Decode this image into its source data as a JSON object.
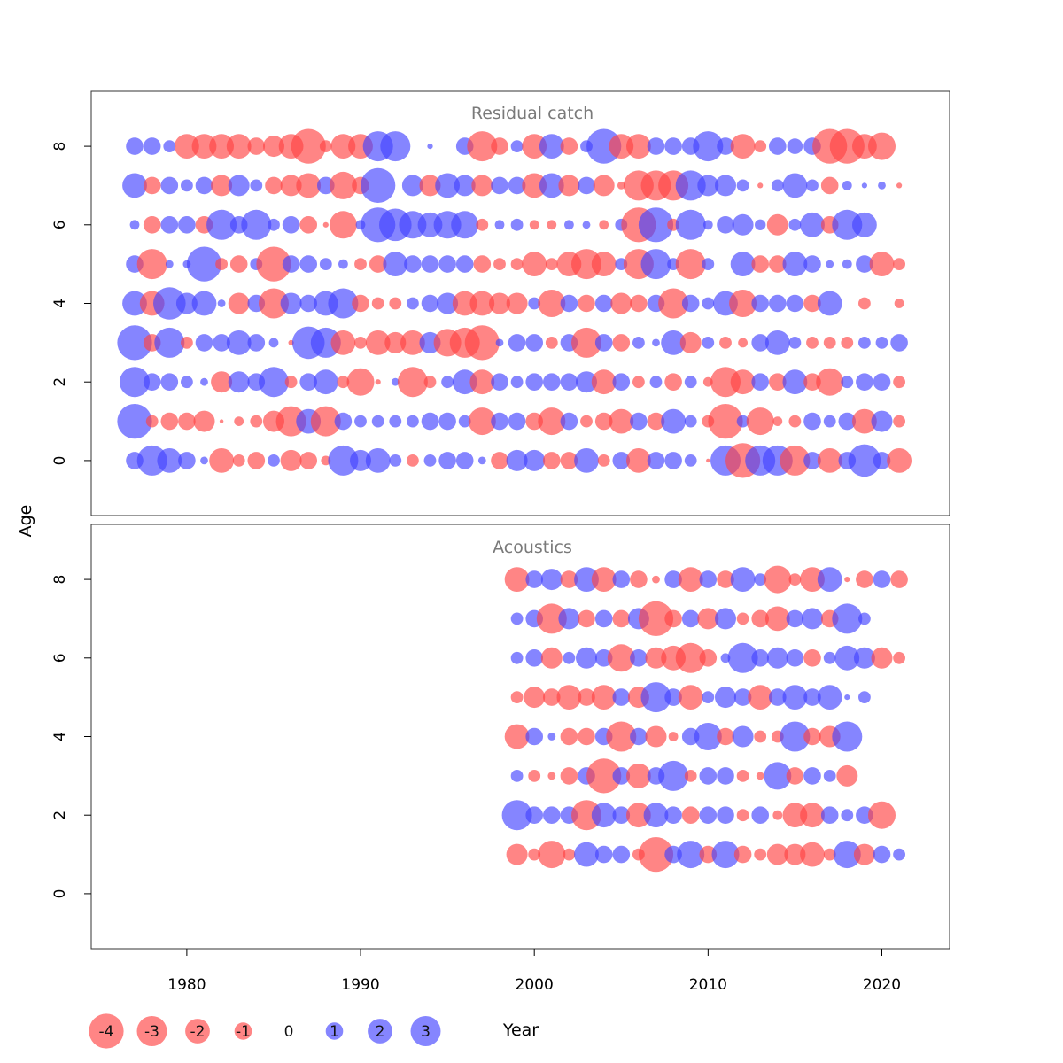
{
  "chart_data": {
    "type": "scatter",
    "subtype": "bubble",
    "xlabel": "Year",
    "ylabel": "Age",
    "xlim": [
      1974.5,
      2023.9
    ],
    "ylim": [
      -1.4,
      9.4
    ],
    "x_ticks": [
      1980,
      1990,
      2000,
      2010,
      2020
    ],
    "y_ticks": [
      0,
      2,
      4,
      6,
      8
    ],
    "colors": {
      "positive": "#4444ff",
      "negative": "#ff4444",
      "opacity": 0.65
    },
    "legend": {
      "position": "bottom-left",
      "values": [
        -4,
        -3,
        -2,
        -1,
        0,
        1,
        2,
        3
      ],
      "labels": [
        "-4",
        "-3",
        "-2",
        "-1",
        "0",
        "1",
        "2",
        "3"
      ]
    },
    "panels": [
      {
        "title": "Residual catch",
        "years_start": 1977,
        "rows": {
          "8": [
            1,
            1,
            0.5,
            -2,
            -2,
            -2,
            -2,
            -1,
            -1.5,
            -2,
            -4,
            -0.5,
            -2,
            -2,
            3,
            3,
            0,
            0.1,
            0,
            1,
            -3,
            -1,
            0.5,
            -2,
            2,
            -1,
            0.5,
            4,
            -2,
            -2,
            1,
            1,
            1,
            3,
            1,
            -2,
            -0.5,
            1,
            0.8,
            1,
            -4,
            -4,
            -2,
            -2.5,
            0
          ],
          "7": [
            2,
            -1,
            1,
            0.5,
            1,
            -1.5,
            1.5,
            0.5,
            -1,
            -1.5,
            -2,
            1,
            -2.5,
            -1,
            4,
            0,
            1.5,
            -1.5,
            2,
            1.5,
            -1.5,
            1,
            1,
            -2,
            2,
            -1.5,
            1,
            -1.5,
            -0.2,
            -3,
            -3,
            -3,
            3,
            1.5,
            1.5,
            0.5,
            -0.1,
            0.5,
            2,
            0.5,
            -1,
            0.3,
            0.1,
            0.2,
            -0.1
          ],
          "6": [
            0.3,
            -1,
            1,
            1,
            -1,
            3,
            1,
            3,
            0.5,
            1,
            -1,
            -0.1,
            -2.5,
            0.3,
            4,
            3.5,
            2.5,
            2,
            2.5,
            2.5,
            -0.5,
            0.3,
            0.5,
            -0.3,
            -0.3,
            0.3,
            0.2,
            -0.3,
            0.5,
            -4,
            4,
            -0.5,
            3,
            0.3,
            1,
            1.5,
            0.4,
            -1.5,
            0.5,
            2,
            -1,
            3,
            2,
            0,
            0
          ],
          "5": [
            1,
            -3,
            0.2,
            0.2,
            4,
            -0.5,
            -1,
            0.5,
            -4,
            1,
            1,
            0.5,
            0.3,
            -0.5,
            -1,
            2,
            1,
            1,
            1,
            1,
            -1,
            -0.5,
            -0.5,
            -2,
            -0.5,
            -2,
            -3,
            -2,
            0.5,
            -3,
            3,
            0.5,
            -3,
            0.5,
            0,
            2,
            -1,
            -1,
            2,
            1,
            0.2,
            0.3,
            1,
            -2,
            -0.5
          ],
          "4": [
            2,
            -2,
            3.5,
            1.5,
            2,
            0.2,
            -1.5,
            1,
            -3,
            1.5,
            1,
            2,
            3,
            -1,
            -0.5,
            -0.5,
            0.5,
            1,
            1.5,
            -2,
            -2,
            -1.5,
            -1.5,
            0.5,
            -2.5,
            1,
            -1,
            1,
            -1.5,
            -1,
            1,
            -3,
            1,
            0.5,
            2,
            -2.5,
            1,
            1,
            1,
            -1,
            2,
            0,
            -0.5,
            0,
            -0.3
          ],
          "3": [
            4,
            -1,
            3,
            -0.5,
            1,
            1,
            2,
            1,
            0.3,
            -0.1,
            3.5,
            3,
            -2,
            -0.5,
            -2,
            -1.5,
            -2,
            1.5,
            -2.5,
            -3,
            -4,
            0.2,
            1,
            1,
            -0.5,
            1,
            -3,
            1,
            -1,
            0.5,
            0.2,
            2,
            -1.5,
            0.5,
            -0.5,
            -0.3,
            1,
            2,
            0.5,
            -0.5,
            -0.5,
            -0.5,
            0.5,
            0.5,
            1
          ],
          "2": [
            3,
            1,
            1,
            0.5,
            0.2,
            -1.5,
            1.5,
            1,
            3,
            -0.5,
            1,
            2,
            -0.5,
            -2.5,
            -0.1,
            0.2,
            -3,
            -0.5,
            0.5,
            2,
            -2,
            1,
            0.5,
            1,
            1,
            1,
            1.5,
            -2,
            1,
            -0.5,
            0.5,
            -1,
            0.5,
            -0.3,
            -3,
            -2,
            1,
            -1,
            2,
            -1,
            -2.5,
            0.5,
            1,
            1,
            -0.5
          ],
          "1": [
            4,
            -0.5,
            -1,
            -1,
            -1.5,
            -0.05,
            -0.3,
            -0.5,
            -1.5,
            -3,
            2,
            -3,
            1,
            0.5,
            0.5,
            0.5,
            0.5,
            1,
            1,
            0.5,
            -2.5,
            1,
            1,
            -1,
            -2.5,
            1,
            -0.5,
            -1,
            -2,
            1,
            -1,
            2,
            0.5,
            -0.5,
            -4,
            0.5,
            -2.5,
            -0.3,
            -0.5,
            1,
            0.5,
            1,
            -2,
            1.5,
            -0.5
          ],
          "0": [
            1,
            3,
            2,
            1,
            0.2,
            -2,
            -0.5,
            -1,
            0.5,
            -1.5,
            -1,
            -0.3,
            3,
            1.5,
            2,
            0.5,
            -0.5,
            0.5,
            1,
            1,
            0.2,
            -1,
            1.5,
            1.5,
            -1,
            -1,
            2,
            -0.5,
            1,
            -2,
            1,
            1,
            0.5,
            -0.05,
            3,
            -4,
            3,
            3,
            -3,
            1,
            -2,
            1,
            3.5,
            1,
            -2
          ]
        }
      },
      {
        "title": "Acoustics",
        "years_start": 1999,
        "rows": {
          "8": [
            -2,
            1,
            1.5,
            -1,
            2,
            -2,
            1,
            -1,
            -0.2,
            1,
            -2,
            1,
            -1,
            2,
            0.5,
            -2.5,
            -0.5,
            -2,
            2,
            -0.1,
            -1,
            1,
            -1
          ],
          "7": [
            0.5,
            1,
            -3,
            1.5,
            -1,
            1,
            -1,
            1.5,
            -4,
            -1,
            1,
            -1.5,
            1.5,
            -0.5,
            -1,
            -2,
            1,
            1.5,
            -1,
            3,
            0.5
          ],
          "6": [
            0.5,
            1,
            -1.5,
            0.5,
            1.5,
            1,
            -2.5,
            1,
            -1.5,
            -2,
            -3,
            -1,
            0.3,
            3,
            1,
            1.5,
            1,
            -1,
            0.5,
            2,
            1.5,
            -1.5,
            -0.5
          ],
          "5": [
            -0.5,
            -1.5,
            -1,
            -2,
            -1,
            -2,
            1,
            -1.5,
            3,
            1,
            -2,
            0.5,
            1.5,
            1,
            -2,
            1,
            2,
            1,
            2,
            0.1,
            0.5
          ],
          "4": [
            -2,
            1,
            0.2,
            -1,
            -1,
            1,
            -3,
            1,
            -1.5,
            -0.3,
            1,
            2.5,
            -1,
            1.5,
            -0.5,
            -0.5,
            3,
            -1,
            -1.5,
            3
          ],
          "3": [
            0.5,
            -0.5,
            -0.2,
            -1,
            1,
            -4,
            1,
            -2,
            1,
            3,
            -0.5,
            1,
            1,
            -0.5,
            -0.2,
            2.5,
            -1,
            1,
            0.5,
            -1.5
          ],
          "2": [
            3,
            1,
            1,
            1,
            -3,
            2,
            1,
            -2,
            2,
            1,
            -1,
            1,
            1,
            -0.5,
            1,
            -0.3,
            -2,
            -2,
            1,
            0.5,
            1,
            -2.5
          ],
          "1": [
            -1.5,
            -0.5,
            -2.5,
            -0.5,
            2,
            1,
            1,
            -0.5,
            -4,
            1,
            2.5,
            -1,
            2.5,
            -1,
            -0.5,
            -1.5,
            -1.5,
            -2,
            -0.5,
            2.5,
            -1.5,
            1,
            0.5
          ]
        }
      }
    ]
  }
}
